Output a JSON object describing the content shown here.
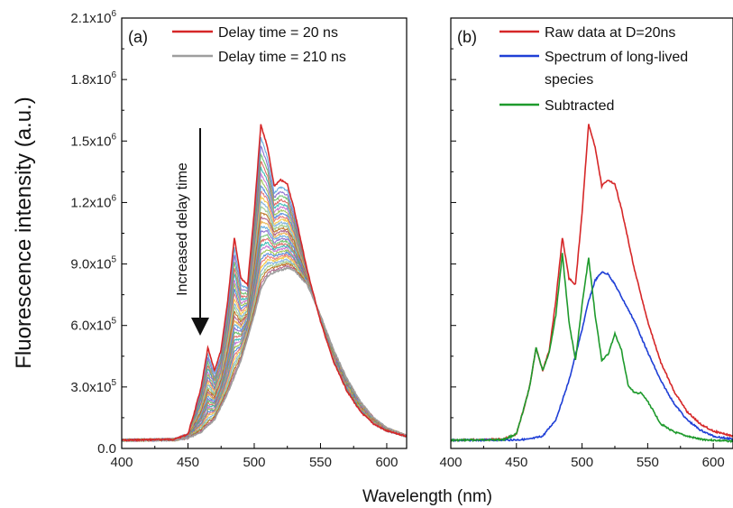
{
  "colors": {
    "red": "#d62728",
    "gray": "#9e9e9e",
    "blue": "#1f3fd6",
    "green": "#1e9a2c"
  },
  "chart_data": [
    {
      "panel": "(a)",
      "type": "line",
      "xlim": [
        400,
        615
      ],
      "ylim": [
        0,
        2100000
      ],
      "xticks": [
        "400",
        "450",
        "500",
        "550",
        "600"
      ],
      "yticks": [
        "0.0",
        "3.0x10^5",
        "6.0x10^5",
        "9.0x10^5",
        "1.2x10^6",
        "1.5x10^6",
        "1.8x10^6",
        "2.1x10^6"
      ],
      "ylabel": "Fluorescence intensity (a.u.)",
      "xlabel": "Wavelength (nm)",
      "annotation": "Increased delay time",
      "legend": [
        {
          "label": "Delay time = 20 ns",
          "color": "#d62728"
        },
        {
          "label": "Delay time = 210 ns",
          "color": "#9e9e9e"
        }
      ],
      "series": [
        {
          "name": "Delay time = 20 ns",
          "color": "#d62728",
          "x": [
            400,
            440,
            450,
            455,
            460,
            465,
            470,
            475,
            480,
            485,
            490,
            495,
            500,
            505,
            510,
            515,
            520,
            525,
            530,
            540,
            550,
            560,
            570,
            580,
            590,
            600,
            615
          ],
          "y": [
            40000,
            45000,
            70000,
            180000,
            300000,
            490000,
            380000,
            480000,
            720000,
            1030000,
            830000,
            800000,
            1150000,
            1580000,
            1470000,
            1280000,
            1310000,
            1290000,
            1170000,
            870000,
            620000,
            420000,
            280000,
            180000,
            120000,
            85000,
            60000
          ]
        },
        {
          "name": "Delay time = 210 ns",
          "color": "#9e9e9e",
          "x": [
            400,
            440,
            450,
            460,
            470,
            480,
            490,
            500,
            505,
            510,
            515,
            520,
            525,
            530,
            540,
            550,
            560,
            570,
            580,
            590,
            600,
            615
          ],
          "y": [
            40000,
            42000,
            50000,
            80000,
            140000,
            270000,
            430000,
            650000,
            780000,
            840000,
            860000,
            870000,
            880000,
            870000,
            800000,
            650000,
            480000,
            340000,
            230000,
            150000,
            100000,
            60000
          ]
        }
      ]
    },
    {
      "panel": "(b)",
      "type": "line",
      "xlim": [
        400,
        615
      ],
      "ylim": [
        0,
        2100000
      ],
      "xticks": [
        "400",
        "450",
        "500",
        "550",
        "600"
      ],
      "xlabel": "Wavelength (nm)",
      "legend": [
        {
          "label": "Raw data at D=20ns",
          "color": "#d62728"
        },
        {
          "label": "Spectrum of long-lived",
          "label_line2": "species",
          "color": "#1f3fd6"
        },
        {
          "label": "Subtracted",
          "color": "#1e9a2c"
        }
      ],
      "series": [
        {
          "name": "Raw data at D=20ns",
          "color": "#d62728",
          "x": [
            400,
            440,
            450,
            455,
            460,
            465,
            470,
            475,
            480,
            485,
            490,
            495,
            500,
            505,
            510,
            515,
            520,
            525,
            530,
            540,
            550,
            560,
            570,
            580,
            590,
            600,
            615
          ],
          "y": [
            40000,
            45000,
            70000,
            180000,
            300000,
            490000,
            380000,
            480000,
            720000,
            1030000,
            830000,
            800000,
            1150000,
            1580000,
            1470000,
            1280000,
            1310000,
            1290000,
            1170000,
            870000,
            620000,
            420000,
            280000,
            180000,
            120000,
            85000,
            60000
          ]
        },
        {
          "name": "Spectrum of long-lived species",
          "color": "#1f3fd6",
          "x": [
            400,
            450,
            460,
            470,
            480,
            490,
            500,
            505,
            510,
            515,
            520,
            525,
            530,
            540,
            550,
            560,
            570,
            580,
            590,
            600,
            615
          ],
          "y": [
            40000,
            42000,
            45000,
            60000,
            140000,
            330000,
            580000,
            720000,
            820000,
            860000,
            850000,
            800000,
            740000,
            620000,
            470000,
            330000,
            220000,
            140000,
            90000,
            60000,
            45000
          ]
        },
        {
          "name": "Subtracted",
          "color": "#1e9a2c",
          "x": [
            400,
            440,
            450,
            455,
            460,
            465,
            470,
            475,
            480,
            485,
            490,
            495,
            500,
            505,
            510,
            515,
            520,
            525,
            530,
            535,
            540,
            545,
            550,
            560,
            570,
            580,
            590,
            600,
            615
          ],
          "y": [
            40000,
            43000,
            70000,
            180000,
            300000,
            490000,
            380000,
            470000,
            650000,
            950000,
            620000,
            430000,
            700000,
            930000,
            650000,
            430000,
            460000,
            560000,
            480000,
            310000,
            270000,
            270000,
            230000,
            120000,
            80000,
            60000,
            45000,
            40000,
            35000
          ]
        }
      ]
    }
  ]
}
